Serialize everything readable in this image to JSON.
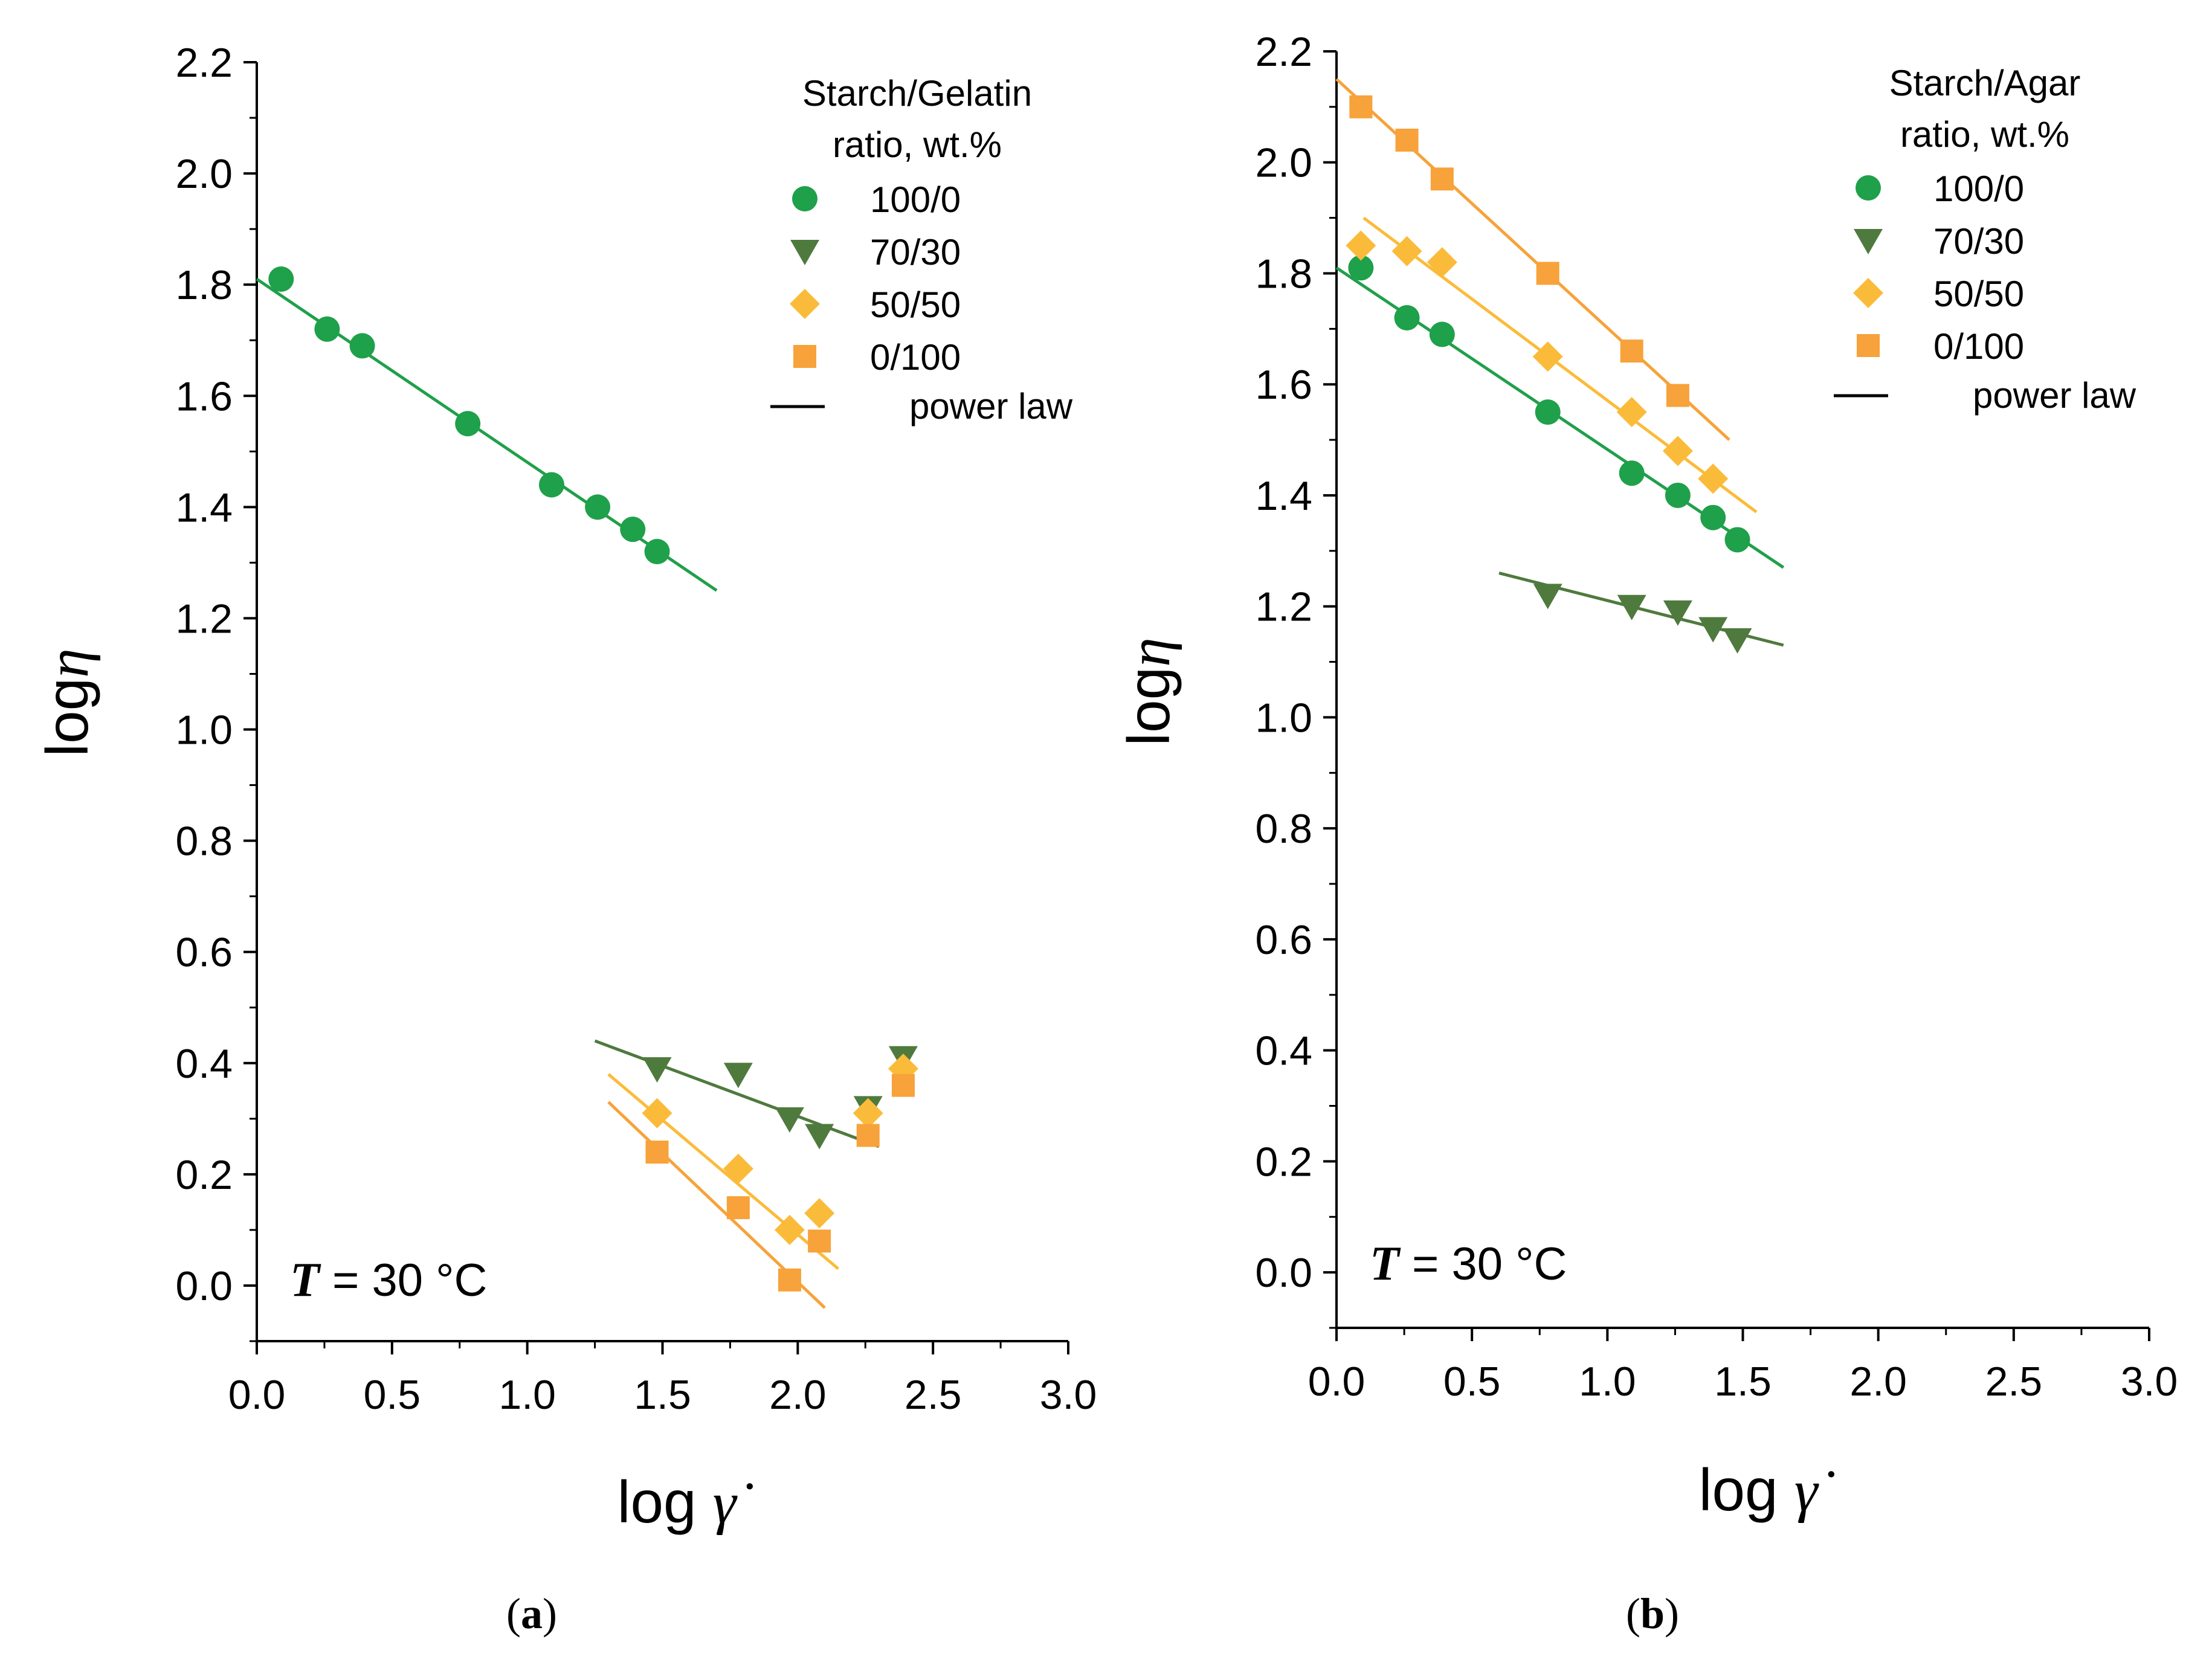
{
  "chart_data": [
    {
      "type": "scatter",
      "panel": "a",
      "caption": {
        "open": "(",
        "letter": "a",
        "close": ")"
      },
      "xlabel": {
        "prefix": "log",
        "symbol": "γ̇"
      },
      "ylabel": {
        "prefix": "log",
        "symbol": "η"
      },
      "xlim": [
        0.0,
        3.0
      ],
      "ylim": [
        -0.1,
        2.2
      ],
      "xticks": [
        0.0,
        0.5,
        1.0,
        1.5,
        2.0,
        2.5,
        3.0
      ],
      "xtick_labels": [
        "0.0",
        "0.5",
        "1.0",
        "1.5",
        "2.0",
        "2.5",
        "3.0"
      ],
      "yticks": [
        0.0,
        0.2,
        0.4,
        0.6,
        0.8,
        1.0,
        1.2,
        1.4,
        1.6,
        1.8,
        2.0,
        2.2
      ],
      "ytick_labels": [
        "0.0",
        "0.2",
        "0.4",
        "0.6",
        "0.8",
        "1.0",
        "1.2",
        "1.4",
        "1.6",
        "1.8",
        "2.0",
        "2.2"
      ],
      "legend_title": [
        "Starch/Gelatin",
        "ratio, wt.%"
      ],
      "legend_position": "top-right",
      "fit_label": "power law",
      "annotation": {
        "var": "T",
        "text": " = 30 °C"
      },
      "series": [
        {
          "name": "100/0",
          "marker": "circle",
          "color": "#1FA04A",
          "x": [
            0.09,
            0.26,
            0.39,
            0.78,
            1.09,
            1.26,
            1.39,
            1.48
          ],
          "y": [
            1.81,
            1.72,
            1.69,
            1.55,
            1.44,
            1.4,
            1.36,
            1.32
          ],
          "fit": [
            [
              0.0,
              1.81
            ],
            [
              1.7,
              1.25
            ]
          ]
        },
        {
          "name": "70/30",
          "marker": "triangle-down",
          "color": "#4F7A3E",
          "x": [
            1.48,
            1.78,
            1.97,
            2.08,
            2.26,
            2.39
          ],
          "y": [
            0.39,
            0.38,
            0.3,
            0.27,
            0.32,
            0.41
          ],
          "fit": [
            [
              1.25,
              0.44
            ],
            [
              2.3,
              0.25
            ]
          ]
        },
        {
          "name": "50/50",
          "marker": "diamond",
          "color": "#FBBB3A",
          "x": [
            1.48,
            1.78,
            1.97,
            2.08,
            2.26,
            2.39
          ],
          "y": [
            0.31,
            0.21,
            0.1,
            0.13,
            0.31,
            0.39
          ],
          "fit": [
            [
              1.3,
              0.38
            ],
            [
              2.15,
              0.03
            ]
          ]
        },
        {
          "name": "0/100",
          "marker": "square",
          "color": "#F7A23A",
          "x": [
            1.48,
            1.78,
            1.97,
            2.08,
            2.26,
            2.39
          ],
          "y": [
            0.24,
            0.14,
            0.01,
            0.08,
            0.27,
            0.36
          ],
          "fit": [
            [
              1.3,
              0.33
            ],
            [
              2.1,
              -0.04
            ]
          ]
        }
      ]
    },
    {
      "type": "scatter",
      "panel": "b",
      "caption": {
        "open": "(",
        "letter": "b",
        "close": ")"
      },
      "xlabel": {
        "prefix": "log",
        "symbol": "γ̇"
      },
      "ylabel": {
        "prefix": "log",
        "symbol": "η"
      },
      "xlim": [
        0.0,
        3.0
      ],
      "ylim": [
        -0.1,
        2.2
      ],
      "xticks": [
        0.0,
        0.5,
        1.0,
        1.5,
        2.0,
        2.5,
        3.0
      ],
      "xtick_labels": [
        "0.0",
        "0.5",
        "1.0",
        "1.5",
        "2.0",
        "2.5",
        "3.0"
      ],
      "yticks": [
        0.0,
        0.2,
        0.4,
        0.6,
        0.8,
        1.0,
        1.2,
        1.4,
        1.6,
        1.8,
        2.0,
        2.2
      ],
      "ytick_labels": [
        "0.0",
        "0.2",
        "0.4",
        "0.6",
        "0.8",
        "1.0",
        "1.2",
        "1.4",
        "1.6",
        "1.8",
        "2.0",
        "2.2"
      ],
      "legend_title": [
        "Starch/Agar",
        "ratio, wt.%"
      ],
      "legend_position": "top-right",
      "fit_label": "power law",
      "annotation": {
        "var": "T",
        "text": " = 30 °C"
      },
      "series": [
        {
          "name": "100/0",
          "marker": "circle",
          "color": "#1FA04A",
          "x": [
            0.09,
            0.26,
            0.39,
            0.78,
            1.09,
            1.26,
            1.39,
            1.48
          ],
          "y": [
            1.81,
            1.72,
            1.69,
            1.55,
            1.44,
            1.4,
            1.36,
            1.32
          ],
          "fit": [
            [
              0.0,
              1.81
            ],
            [
              1.65,
              1.27
            ]
          ]
        },
        {
          "name": "70/30",
          "marker": "triangle-down",
          "color": "#4F7A3E",
          "x": [
            0.78,
            1.09,
            1.26,
            1.39,
            1.48
          ],
          "y": [
            1.22,
            1.2,
            1.19,
            1.16,
            1.14
          ],
          "fit": [
            [
              0.6,
              1.26
            ],
            [
              1.65,
              1.13
            ]
          ]
        },
        {
          "name": "50/50",
          "marker": "diamond",
          "color": "#FBBB3A",
          "x": [
            0.09,
            0.26,
            0.39,
            0.78,
            1.09,
            1.26,
            1.39
          ],
          "y": [
            1.85,
            1.84,
            1.82,
            1.65,
            1.55,
            1.48,
            1.43
          ],
          "fit": [
            [
              0.1,
              1.9
            ],
            [
              1.55,
              1.37
            ]
          ]
        },
        {
          "name": "0/100",
          "marker": "square",
          "color": "#F7A23A",
          "x": [
            0.09,
            0.26,
            0.39,
            0.78,
            1.09,
            1.26
          ],
          "y": [
            2.1,
            2.04,
            1.97,
            1.8,
            1.66,
            1.58
          ],
          "fit": [
            [
              0.0,
              2.15
            ],
            [
              1.45,
              1.5
            ]
          ]
        }
      ]
    }
  ]
}
